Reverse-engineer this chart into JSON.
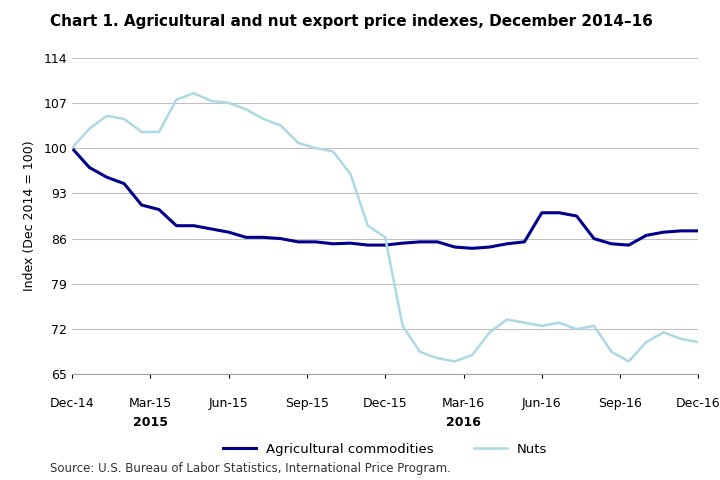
{
  "title": "Chart 1. Agricultural and nut export price indexes, December 2014–16",
  "ylabel": "Index (Dec 2014 = 100)",
  "source": "Source: U.S. Bureau of Labor Statistics, International Price Program.",
  "ylim": [
    65.0,
    114.0
  ],
  "yticks": [
    65.0,
    72.0,
    79.0,
    86.0,
    93.0,
    100.0,
    107.0,
    114.0
  ],
  "xtick_labels": [
    "Dec-14",
    "Mar-15",
    "Jun-15",
    "Sep-15",
    "Dec-15",
    "Mar-16",
    "Jun-16",
    "Sep-16",
    "Dec-16"
  ],
  "xtick_years": [
    "",
    "2015",
    "",
    "",
    "",
    "2016",
    "",
    "",
    ""
  ],
  "agri_values": [
    100.0,
    97.0,
    95.5,
    94.5,
    91.2,
    90.5,
    88.0,
    88.0,
    87.5,
    87.0,
    86.2,
    86.2,
    86.0,
    85.5,
    85.5,
    85.2,
    85.3,
    85.0,
    85.0,
    85.3,
    85.5,
    85.5,
    84.7,
    84.5,
    84.7,
    85.2,
    85.5,
    90.0,
    90.0,
    89.5,
    86.0,
    85.2,
    85.0,
    86.5,
    87.0,
    87.2,
    87.2
  ],
  "nuts_values": [
    100.0,
    103.0,
    105.0,
    104.5,
    102.5,
    102.5,
    107.5,
    108.5,
    107.3,
    107.0,
    106.0,
    104.5,
    103.5,
    100.8,
    100.0,
    99.5,
    96.0,
    88.0,
    86.2,
    72.5,
    68.5,
    67.5,
    67.0,
    68.0,
    71.5,
    73.5,
    73.0,
    72.5,
    73.0,
    72.0,
    72.5,
    68.5,
    67.0,
    70.0,
    71.5,
    70.5,
    70.0
  ],
  "agri_color": "#00008B",
  "nuts_color": "#ADD8E6",
  "agri_label": "Agricultural commodities",
  "nuts_label": "Nuts",
  "agri_linewidth": 2.2,
  "nuts_linewidth": 1.8,
  "title_fontsize": 11,
  "ylabel_fontsize": 9,
  "source_fontsize": 8.5,
  "tick_fontsize": 9,
  "legend_fontsize": 9.5,
  "grid_color": "#c0c0c0",
  "bg_color": "#ffffff"
}
